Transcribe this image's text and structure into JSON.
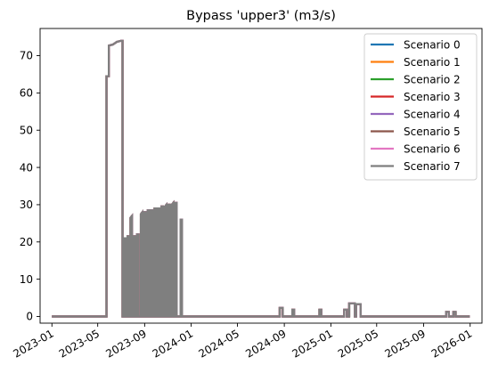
{
  "chart_data": {
    "type": "line",
    "title": "Bypass 'upper3' (m3/s)",
    "xlabel": "",
    "ylabel": "",
    "x_ticks": [
      "2023-01",
      "2023-05",
      "2023-09",
      "2024-01",
      "2024-05",
      "2024-09",
      "2025-01",
      "2025-05",
      "2025-09",
      "2026-01"
    ],
    "y_ticks": [
      0,
      10,
      20,
      30,
      40,
      50,
      60,
      70
    ],
    "xlim": [
      "2022-12-01",
      "2026-02-01"
    ],
    "ylim": [
      -1.8,
      77.3
    ],
    "grid": false,
    "legend_position": "upper right",
    "series": [
      {
        "name": "Scenario 0",
        "color": "#1f77b4"
      },
      {
        "name": "Scenario 1",
        "color": "#ff7f0e"
      },
      {
        "name": "Scenario 2",
        "color": "#2ca02c"
      },
      {
        "name": "Scenario 3",
        "color": "#d62728"
      },
      {
        "name": "Scenario 4",
        "color": "#9467bd"
      },
      {
        "name": "Scenario 5",
        "color": "#8c564b"
      },
      {
        "name": "Scenario 6",
        "color": "#e377c2"
      },
      {
        "name": "Scenario 7",
        "color": "#7f7f7f"
      }
    ],
    "shared_values": {
      "description_free": true,
      "points": [
        [
          "2023-01-01",
          0
        ],
        [
          "2023-05-24",
          0
        ],
        [
          "2023-05-24",
          64.5
        ],
        [
          "2023-05-30",
          64.5
        ],
        [
          "2023-05-30",
          72.7
        ],
        [
          "2023-06-10",
          73.0
        ],
        [
          "2023-06-20",
          73.7
        ],
        [
          "2023-07-01",
          74.0
        ],
        [
          "2023-07-05",
          74.0
        ],
        [
          "2023-07-05",
          0
        ],
        [
          "2023-07-10",
          0
        ],
        [
          "2023-07-10",
          21.0
        ],
        [
          "2023-07-14",
          21.0
        ],
        [
          "2023-07-14",
          0
        ],
        [
          "2023-07-18",
          0
        ],
        [
          "2023-07-18",
          21.5
        ],
        [
          "2023-07-22",
          21.5
        ],
        [
          "2023-07-22",
          0
        ],
        [
          "2023-07-26",
          0
        ],
        [
          "2023-07-26",
          26.5
        ],
        [
          "2023-07-30",
          27.0
        ],
        [
          "2023-07-30",
          0
        ],
        [
          "2023-08-03",
          0
        ],
        [
          "2023-08-03",
          21.5
        ],
        [
          "2023-08-07",
          21.5
        ],
        [
          "2023-08-07",
          0
        ],
        [
          "2023-08-12",
          0
        ],
        [
          "2023-08-12",
          22.0
        ],
        [
          "2023-08-16",
          22.0
        ],
        [
          "2023-08-16",
          0
        ],
        [
          "2023-08-22",
          0
        ],
        [
          "2023-08-22",
          27.5
        ],
        [
          "2023-08-26",
          28.0
        ],
        [
          "2023-08-26",
          0
        ],
        [
          "2023-08-31",
          0
        ],
        [
          "2023-08-31",
          28.0
        ],
        [
          "2023-09-04",
          28.0
        ],
        [
          "2023-09-04",
          0
        ],
        [
          "2023-09-09",
          0
        ],
        [
          "2023-09-09",
          28.5
        ],
        [
          "2023-09-13",
          28.5
        ],
        [
          "2023-09-13",
          0
        ],
        [
          "2023-09-18",
          0
        ],
        [
          "2023-09-18",
          28.5
        ],
        [
          "2023-09-22",
          28.5
        ],
        [
          "2023-09-22",
          0
        ],
        [
          "2023-09-27",
          0
        ],
        [
          "2023-09-27",
          29.0
        ],
        [
          "2023-10-01",
          29.0
        ],
        [
          "2023-10-01",
          0
        ],
        [
          "2023-10-06",
          0
        ],
        [
          "2023-10-06",
          29.0
        ],
        [
          "2023-10-10",
          29.0
        ],
        [
          "2023-10-10",
          0
        ],
        [
          "2023-10-15",
          0
        ],
        [
          "2023-10-15",
          29.5
        ],
        [
          "2023-10-19",
          29.5
        ],
        [
          "2023-10-19",
          0
        ],
        [
          "2023-10-24",
          0
        ],
        [
          "2023-10-24",
          29.5
        ],
        [
          "2023-10-28",
          30.0
        ],
        [
          "2023-10-28",
          0
        ],
        [
          "2023-11-02",
          0
        ],
        [
          "2023-11-02",
          30.0
        ],
        [
          "2023-11-06",
          30.0
        ],
        [
          "2023-11-06",
          0
        ],
        [
          "2023-11-11",
          0
        ],
        [
          "2023-11-11",
          30.0
        ],
        [
          "2023-11-15",
          30.5
        ],
        [
          "2023-11-15",
          0
        ],
        [
          "2023-11-20",
          0
        ],
        [
          "2023-11-20",
          30.5
        ],
        [
          "2023-11-24",
          30.5
        ],
        [
          "2023-11-24",
          0
        ],
        [
          "2023-12-04",
          0
        ],
        [
          "2023-12-04",
          26.0
        ],
        [
          "2023-12-08",
          26.0
        ],
        [
          "2023-12-08",
          0
        ],
        [
          "2024-08-20",
          0
        ],
        [
          "2024-08-20",
          2.3
        ],
        [
          "2024-08-28",
          2.3
        ],
        [
          "2024-08-28",
          0
        ],
        [
          "2024-09-22",
          0
        ],
        [
          "2024-09-22",
          1.8
        ],
        [
          "2024-09-27",
          1.8
        ],
        [
          "2024-09-27",
          0
        ],
        [
          "2024-12-02",
          0
        ],
        [
          "2024-12-02",
          1.8
        ],
        [
          "2024-12-07",
          1.8
        ],
        [
          "2024-12-07",
          0
        ],
        [
          "2025-02-05",
          0
        ],
        [
          "2025-02-05",
          1.8
        ],
        [
          "2025-02-12",
          1.8
        ],
        [
          "2025-02-12",
          0
        ],
        [
          "2025-02-18",
          0
        ],
        [
          "2025-02-18",
          3.5
        ],
        [
          "2025-03-05",
          3.5
        ],
        [
          "2025-03-05",
          0
        ],
        [
          "2025-03-08",
          0
        ],
        [
          "2025-03-08",
          3.3
        ],
        [
          "2025-03-20",
          3.3
        ],
        [
          "2025-03-20",
          0
        ],
        [
          "2025-10-30",
          0
        ],
        [
          "2025-10-30",
          1.2
        ],
        [
          "2025-11-06",
          1.2
        ],
        [
          "2025-11-06",
          0
        ],
        [
          "2025-11-18",
          0
        ],
        [
          "2025-11-18",
          1.2
        ],
        [
          "2025-11-24",
          1.2
        ],
        [
          "2025-11-24",
          0
        ],
        [
          "2025-12-31",
          0
        ]
      ]
    }
  }
}
